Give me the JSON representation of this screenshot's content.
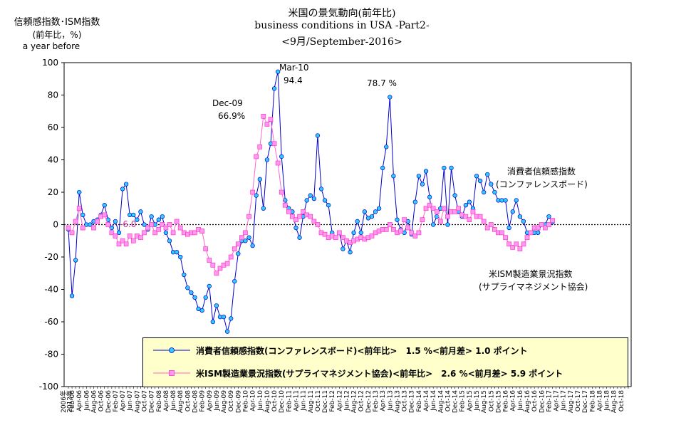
{
  "header": {
    "title_line1": "米国の景気動向(前年比)",
    "title_line2": "business conditions in USA -Part2-",
    "title_line3": "<9月/September-2016>"
  },
  "y_axis_label": {
    "line1": "信頼感指数･ISM指数",
    "line2": "(前年比，%)",
    "line3": "a year before"
  },
  "annotations": {
    "mar10": "Mar-10",
    "mar10_val": "94.4",
    "dec09": "Dec-09",
    "dec09_val": "66.9%",
    "oct12_val": "78.7 %",
    "minus6": "-6.0",
    "cc_name": "消費者信頼感指数",
    "cc_source": "(コンファレンスボード)",
    "ism_name": "米ISM製造業景況指数",
    "ism_source": "(サプライマネジメント協会)"
  },
  "legend": {
    "series1": "消費者信頼感指数(コンファレンスボード)<前年比>　1.5 %<前月差> 1.0 ポイント",
    "series2": "米ISM製造業景況指数(サプライマネジメント協会)<前年比>　2.6 %<前月差> 5.9 ポイント"
  },
  "colors": {
    "series1_line": "#0000cc",
    "series1_marker": "#33ccff",
    "series2_line": "#ff66cc",
    "series2_marker": "#ff66cc",
    "legend_bg": "#ffffcc"
  },
  "chart_data": {
    "type": "line",
    "x_start": "Jan-06",
    "x_end": "Dec-18",
    "x_labels_special": [
      "2006年",
      "2012年"
    ],
    "x_tick_labels": [
      "Feb-06",
      "Apr-06",
      "Jun-06",
      "Aug-06",
      "Oct-06",
      "Dec-06",
      "Feb-07",
      "Apr-07",
      "Jun-07",
      "Aug-07",
      "Oct-07",
      "Dec-07",
      "Feb-08",
      "Apr-08",
      "Jun-08",
      "Aug-08",
      "Oct-08",
      "Dec-08",
      "Feb-09",
      "Apr-09",
      "Jun-09",
      "Aug-09",
      "Oct-09",
      "Dec-09",
      "Feb-10",
      "Apr-10",
      "Jun-10",
      "Aug-10",
      "Oct-10",
      "Dec-10",
      "Feb-11",
      "Apr-11",
      "Jun-11",
      "Aug-11",
      "Oct-11",
      "Dec-11",
      "Feb-12",
      "Apr-12",
      "Jun-12",
      "Aug-12",
      "Oct-12",
      "Dec-12",
      "Feb-13",
      "Apr-13",
      "Jun-13",
      "Aug-13",
      "Oct-13",
      "Dec-13",
      "Feb-14",
      "Apr-14",
      "Jun-14",
      "Aug-14",
      "Oct-14",
      "Dec-14",
      "Feb-15",
      "Apr-15",
      "Jun-15",
      "Aug-15",
      "Oct-15",
      "Dec-15",
      "Feb-16",
      "Apr-16",
      "Jun-16",
      "Aug-16",
      "Oct-16",
      "Dec-16",
      "Feb-17",
      "Apr-17",
      "Jun-17",
      "Aug-17",
      "Oct-17",
      "Dec-17",
      "Feb-18",
      "Apr-18",
      "Jun-18",
      "Aug-18",
      "Oct-18"
    ],
    "ylim": [
      -100,
      100
    ],
    "yticks": [
      -100,
      -80,
      -60,
      -40,
      -20,
      0,
      20,
      40,
      60,
      80,
      100
    ],
    "grid": false,
    "legend_position": "bottom-center",
    "series": [
      {
        "name": "消費者信頼感指数(コンファレンスボード)",
        "marker": "circle",
        "values": [
          -3,
          -44,
          -22,
          20,
          6,
          0,
          0,
          2,
          3,
          6,
          12,
          3,
          -2,
          2,
          -5,
          22,
          25,
          6,
          6,
          3,
          8,
          0,
          -3,
          5,
          0,
          3,
          5,
          -5,
          -10,
          -17,
          -17,
          -20,
          -31,
          -39,
          -42,
          -45,
          -52,
          -53,
          -45,
          -38,
          -60,
          -50,
          -57,
          -57,
          -66,
          -58,
          -35,
          -18,
          -10,
          -10,
          -8,
          -13,
          18,
          28,
          10,
          40,
          50,
          84,
          94.4,
          42,
          15,
          10,
          8,
          -2,
          -8,
          5,
          15,
          18,
          16,
          55,
          22,
          15,
          12,
          -5,
          -8,
          -5,
          -15,
          -10,
          -17,
          -5,
          2,
          -5,
          8,
          4,
          5,
          8,
          10,
          35,
          48,
          78.7,
          30,
          3,
          -3,
          -5,
          2,
          -6,
          14,
          30,
          25,
          33,
          17,
          0,
          5,
          10,
          35,
          0,
          35,
          18,
          8,
          5,
          12,
          14,
          10,
          30,
          27,
          20,
          31,
          25,
          20,
          15,
          15,
          15,
          -2,
          8,
          15,
          5,
          2,
          -5,
          -5,
          -5,
          -5,
          0,
          0,
          5,
          1.5
        ]
      },
      {
        "name": "米ISM製造業景況指数(サプライマネジメント協会)",
        "marker": "square",
        "values": [
          -2,
          -5,
          2,
          10,
          -2,
          null,
          null,
          -2,
          2,
          5,
          6,
          0,
          -5,
          -7,
          -12,
          -10,
          -12,
          -7,
          -10,
          -7,
          -8,
          -5,
          -2,
          0,
          -5,
          -3,
          0,
          -2,
          0,
          -5,
          2,
          -2,
          -5,
          -6,
          -5,
          -5,
          -3,
          -4,
          -15,
          -22,
          -25,
          -30,
          -27,
          -25,
          -24,
          -20,
          -15,
          -12,
          -8,
          -5,
          5,
          20,
          42,
          48,
          66.9,
          62,
          65,
          50,
          38,
          20,
          12,
          8,
          5,
          3,
          5,
          8,
          6,
          5,
          2,
          0,
          -5,
          -6,
          -8,
          -7,
          -8,
          -5,
          -8,
          -10,
          -11,
          -10,
          -9,
          -8,
          -9,
          -8,
          -7,
          -5,
          -4,
          -3,
          -3,
          0,
          -3,
          -5,
          -4,
          3,
          -2,
          -5,
          -7,
          -5,
          3,
          10,
          12,
          10,
          8,
          2,
          10,
          5,
          8,
          8,
          10,
          6,
          5,
          3,
          8,
          5,
          5,
          2,
          -2,
          0,
          -3,
          -5,
          -5,
          -8,
          -12,
          -14,
          -12,
          -15,
          -12,
          -8,
          -5,
          -2,
          -2,
          0,
          -2,
          0,
          2.6
        ]
      }
    ]
  }
}
